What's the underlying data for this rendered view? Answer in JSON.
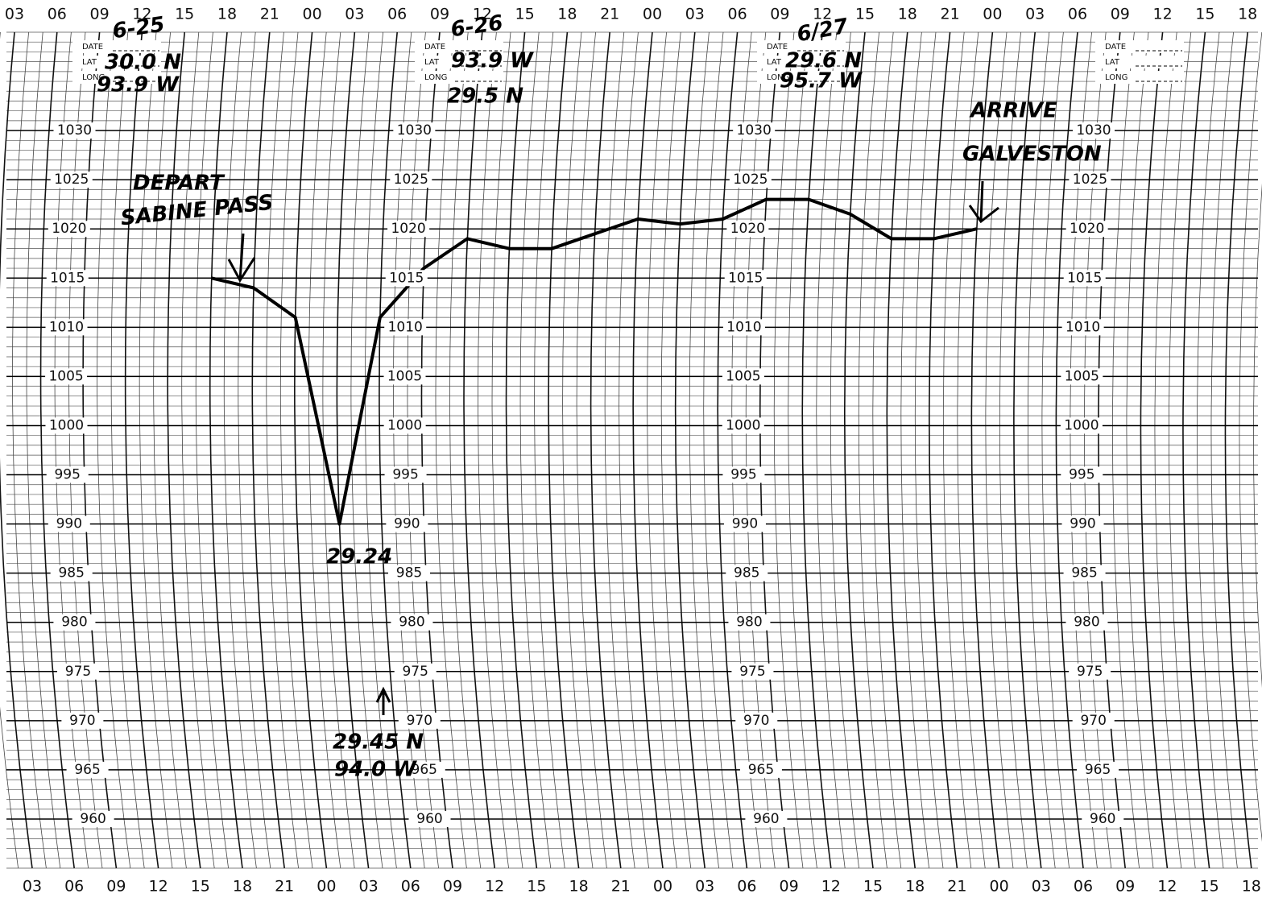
{
  "chart_data": {
    "type": "line",
    "categories": [
      "03",
      "06",
      "09",
      "12",
      "15",
      "18",
      "21",
      "00",
      "03",
      "06",
      "09",
      "12",
      "15",
      "18",
      "21",
      "00",
      "03",
      "06",
      "09",
      "12",
      "15",
      "18",
      "21",
      "00",
      "03",
      "06",
      "09",
      "12",
      "15",
      "18"
    ],
    "values": [
      null,
      null,
      null,
      null,
      null,
      1015,
      1014,
      1011,
      990,
      1011,
      1016,
      1019,
      1018,
      1018,
      1019.5,
      1021,
      1020.5,
      1021,
      1023,
      1023,
      1021.5,
      1019,
      1019,
      1020,
      null,
      null,
      null,
      null,
      null,
      null
    ],
    "color": "#000000",
    "ylim": [
      955,
      1040
    ],
    "yticks": [
      960,
      965,
      970,
      975,
      980,
      985,
      990,
      995,
      1000,
      1005,
      1010,
      1015,
      1020,
      1025,
      1030
    ],
    "grid": true,
    "form": {
      "date": "DATE",
      "lat": "LAT",
      "long": "LONG"
    },
    "annotations": [
      "6-25",
      "30.0 N",
      "93.9 W",
      "6-26",
      "93.9 W",
      "29.5 N",
      "6/27",
      "29.6 N",
      "95.7 W",
      "DEPART",
      "SABINE PASS",
      "ARRIVE",
      "GALVESTON",
      "29.24",
      "29.45 N",
      "94.0 W"
    ]
  }
}
